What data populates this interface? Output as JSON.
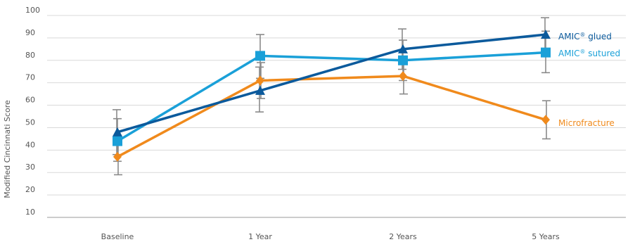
{
  "chart_data": {
    "type": "line",
    "title": "",
    "xlabel": "",
    "ylabel": "Modified Cincinnati Score",
    "categories": [
      "Baseline",
      "1 Year",
      "2 Years",
      "5 Years"
    ],
    "ylim": [
      10,
      100
    ],
    "yticks": [
      10,
      20,
      30,
      40,
      50,
      60,
      70,
      80,
      90,
      100
    ],
    "grid": "horizontal",
    "legend_placement": "right, labels at line ends",
    "series": [
      {
        "name": "AMIC® glued",
        "label_parts": [
          "AMIC",
          "®",
          " glued"
        ],
        "color": "#0b5a9c",
        "marker": "triangle",
        "values": [
          48,
          66.5,
          85,
          91.5
        ],
        "err_low": [
          38,
          57,
          76,
          83
        ],
        "err_high": [
          58,
          77,
          94,
          99
        ]
      },
      {
        "name": "AMIC® sutured",
        "label_parts": [
          "AMIC",
          "®",
          " sutured"
        ],
        "color": "#1aa0d8",
        "marker": "square",
        "values": [
          44,
          82,
          80,
          83.5
        ],
        "err_low": [
          35,
          72,
          71,
          74.5
        ],
        "err_high": [
          54,
          91.5,
          89,
          93
        ]
      },
      {
        "name": "Microfracture",
        "label_parts": [
          "Microfracture"
        ],
        "color": "#f08a1c",
        "marker": "diamond",
        "values": [
          37,
          71,
          73,
          53.5
        ],
        "err_low": [
          29,
          63,
          65,
          45
        ],
        "err_high": [
          45,
          79,
          81,
          62
        ]
      }
    ]
  }
}
